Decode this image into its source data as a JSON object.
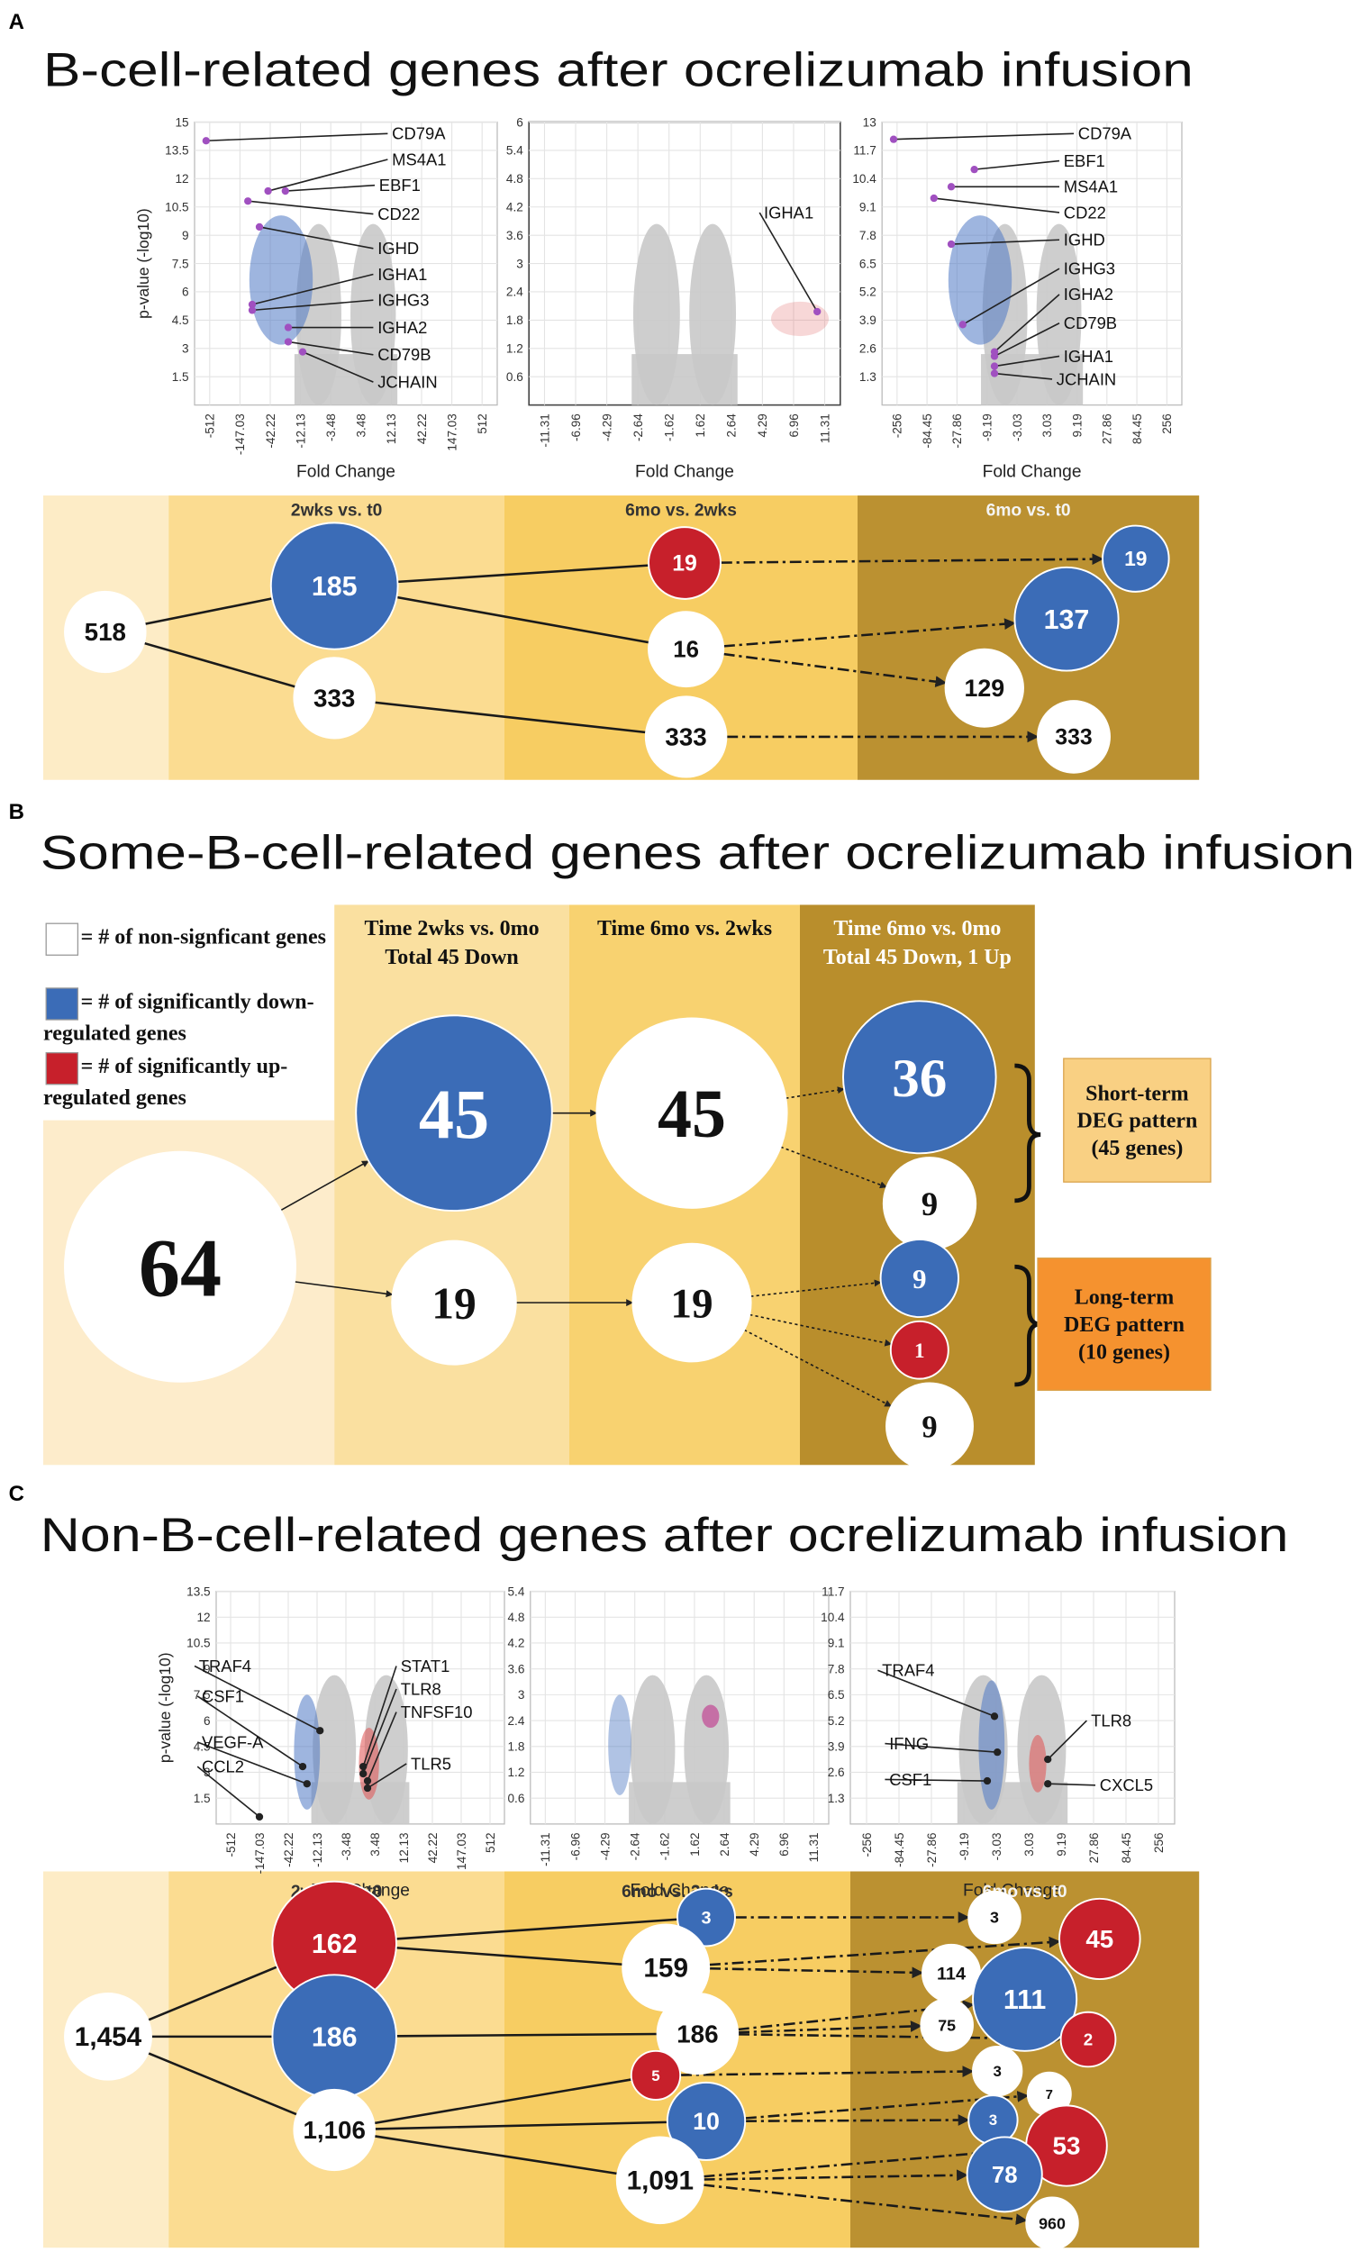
{
  "panels": [
    {
      "label": "A",
      "title": "B-cell-related genes after ocrelizumab infusion",
      "volcano_plots": [
        {
          "y_axis_label": "p-value (-log10)",
          "x_axis_label": "Fold Change",
          "ylim": [
            0,
            15
          ],
          "yticks": [
            1.5,
            3,
            4.5,
            6,
            7.5,
            9,
            10.5,
            12,
            13.5,
            15
          ],
          "xticks": [
            -512,
            -147.03,
            -42.22,
            -12.13,
            -3.48,
            3.48,
            12.13,
            42.22,
            147.03,
            512
          ],
          "genes": [
            "CD79A",
            "MS4A1",
            "EBF1",
            "CD22",
            "IGHD",
            "IGHA1",
            "IGHG3",
            "IGHA2",
            "CD79B",
            "JCHAIN"
          ]
        },
        {
          "x_axis_label": "Fold Change",
          "ylim": [
            0,
            6
          ],
          "yticks": [
            0.6,
            1.2,
            1.8,
            2.4,
            3,
            3.6,
            4.2,
            4.8,
            5.4,
            6
          ],
          "xticks": [
            -11.31,
            -6.96,
            -4.29,
            -2.64,
            -1.62,
            1.62,
            2.64,
            4.29,
            6.96,
            11.31
          ],
          "genes": [
            "IGHA1"
          ]
        },
        {
          "x_axis_label": "Fold Change",
          "ylim": [
            0,
            13
          ],
          "yticks": [
            1.3,
            2.6,
            3.9,
            5.2,
            6.5,
            7.8,
            9.1,
            10.4,
            11.7,
            13
          ],
          "xticks": [
            -256,
            -84.45,
            -27.86,
            -9.19,
            -3.03,
            3.03,
            9.19,
            27.86,
            84.45,
            256
          ],
          "genes": [
            "CD79A",
            "EBF1",
            "MS4A1",
            "CD22",
            "IGHD",
            "IGHG3",
            "IGHA2",
            "CD79B",
            "IGHA1",
            "JCHAIN"
          ]
        }
      ],
      "flow": {
        "headers": [
          [
            "2wks vs. t0"
          ],
          [
            "6mo vs. 2wks"
          ],
          [
            "6mo vs. t0"
          ]
        ],
        "nodes": [
          {
            "label": "518",
            "color": "#ffffff"
          },
          {
            "label": "185",
            "color": "#3b6cb7"
          },
          {
            "label": "333",
            "color": "#ffffff"
          },
          {
            "label": "19",
            "color": "#c7202b"
          },
          {
            "label": "16",
            "color": "#ffffff"
          },
          {
            "label": "333",
            "color": "#ffffff"
          },
          {
            "label": "19",
            "color": "#3b6cb7"
          },
          {
            "label": "137",
            "color": "#3b6cb7"
          },
          {
            "label": "129",
            "color": "#ffffff"
          },
          {
            "label": "333",
            "color": "#ffffff"
          }
        ]
      }
    },
    {
      "label": "B",
      "title": "Some-B-cell-related genes after ocrelizumab infusion",
      "legend": [
        {
          "color": "#ffffff",
          "text": "= # of non-signficant genes"
        },
        {
          "color": "#3b6cb7",
          "text": "= # of significantly down-regulated genes"
        },
        {
          "color": "#c7202b",
          "text": "= # of significantly up-regulated genes"
        }
      ],
      "flow": {
        "headers": [
          [
            "Time 2wks vs. 0mo",
            "Total 45 Down"
          ],
          [
            "Time 6mo vs. 2wks"
          ],
          [
            "Time 6mo vs. 0mo",
            "Total 45 Down, 1 Up"
          ]
        ],
        "nodes": [
          {
            "label": "64",
            "color": "#ffffff"
          },
          {
            "label": "45",
            "color": "#3b6cb7"
          },
          {
            "label": "45",
            "color": "#ffffff"
          },
          {
            "label": "19",
            "color": "#ffffff"
          },
          {
            "label": "19",
            "color": "#ffffff"
          },
          {
            "label": "36",
            "color": "#3b6cb7"
          },
          {
            "label": "9",
            "color": "#ffffff"
          },
          {
            "label": "9",
            "color": "#3b6cb7"
          },
          {
            "label": "1",
            "color": "#c7202b"
          },
          {
            "label": "9",
            "color": "#ffffff"
          }
        ]
      },
      "patterns": [
        {
          "lines": [
            "Short-term",
            "DEG pattern",
            "(45 genes)"
          ],
          "color": "#f9d083"
        },
        {
          "lines": [
            "Long-term",
            "DEG pattern",
            "(10 genes)"
          ],
          "color": "#f5922f"
        }
      ]
    },
    {
      "label": "C",
      "title": "Non-B-cell-related genes after ocrelizumab infusion",
      "volcano_plots": [
        {
          "y_axis_label": "p-value (-log10)",
          "x_axis_label": "Fold Change",
          "ylim": [
            0,
            13.5
          ],
          "yticks": [
            1.5,
            3,
            4.5,
            6,
            7.5,
            9,
            10.5,
            12,
            13.5
          ],
          "xticks": [
            -512,
            -147.03,
            -42.22,
            -12.13,
            -3.48,
            3.48,
            12.13,
            42.22,
            147.03,
            512
          ],
          "genes": [
            "TRAF4",
            "CSF1",
            "VEGF-A",
            "CCL2",
            "STAT1",
            "TLR8",
            "TNFSF10",
            "TLR5"
          ]
        },
        {
          "x_axis_label": "Fold Change",
          "ylim": [
            0,
            5.4
          ],
          "yticks": [
            0.6,
            1.2,
            1.8,
            2.4,
            3,
            3.6,
            4.2,
            4.8,
            5.4
          ],
          "xticks": [
            -11.31,
            -6.96,
            -4.29,
            -2.64,
            -1.62,
            1.62,
            2.64,
            4.29,
            6.96,
            11.31
          ],
          "genes": []
        },
        {
          "x_axis_label": "Fold Change",
          "ylim": [
            0,
            11.7
          ],
          "yticks": [
            1.3,
            2.6,
            3.9,
            5.2,
            6.5,
            7.8,
            9.1,
            10.4,
            11.7
          ],
          "xticks": [
            -256,
            -84.45,
            -27.86,
            -9.19,
            -3.03,
            3.03,
            9.19,
            27.86,
            84.45,
            256
          ],
          "genes": [
            "TRAF4",
            "IFNG",
            "CSF1",
            "TLR8",
            "CXCL5"
          ]
        }
      ],
      "flow": {
        "headers": [
          [
            "2wks vs. t0"
          ],
          [
            "6mo vs. 2wks"
          ],
          [
            "6mo vs. t0"
          ]
        ],
        "nodes": [
          {
            "label": "1,454",
            "color": "#ffffff"
          },
          {
            "label": "162",
            "color": "#c7202b"
          },
          {
            "label": "186",
            "color": "#3b6cb7"
          },
          {
            "label": "1,106",
            "color": "#ffffff"
          },
          {
            "label": "3",
            "color": "#3b6cb7"
          },
          {
            "label": "159",
            "color": "#ffffff"
          },
          {
            "label": "186",
            "color": "#ffffff"
          },
          {
            "label": "5",
            "color": "#c7202b"
          },
          {
            "label": "10",
            "color": "#3b6cb7"
          },
          {
            "label": "1,091",
            "color": "#ffffff"
          },
          {
            "label": "3",
            "color": "#ffffff"
          },
          {
            "label": "45",
            "color": "#c7202b"
          },
          {
            "label": "114",
            "color": "#ffffff"
          },
          {
            "label": "111",
            "color": "#3b6cb7"
          },
          {
            "label": "75",
            "color": "#ffffff"
          },
          {
            "label": "2",
            "color": "#c7202b"
          },
          {
            "label": "3",
            "color": "#ffffff"
          },
          {
            "label": "7",
            "color": "#ffffff"
          },
          {
            "label": "3",
            "color": "#3b6cb7"
          },
          {
            "label": "53",
            "color": "#c7202b"
          },
          {
            "label": "78",
            "color": "#3b6cb7"
          },
          {
            "label": "960",
            "color": "#ffffff"
          }
        ]
      }
    }
  ]
}
